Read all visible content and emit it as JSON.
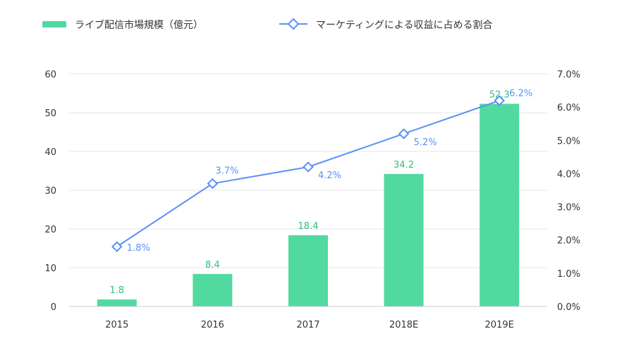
{
  "chart_data": {
    "type": "bar",
    "categories": [
      "2015",
      "2016",
      "2017",
      "2018E",
      "2019E"
    ],
    "series": [
      {
        "name": "ライブ配信市場規模（億元）",
        "type": "bar",
        "axis": "left",
        "values": [
          1.8,
          8.4,
          18.4,
          34.2,
          52.3
        ],
        "labels": [
          "1.8",
          "8.4",
          "18.4",
          "34.2",
          "52.3"
        ]
      },
      {
        "name": "マーケティングによる収益に占める割合",
        "type": "line",
        "axis": "right",
        "values": [
          1.8,
          3.7,
          4.2,
          5.2,
          6.2
        ],
        "labels": [
          "1.8%",
          "3.7%",
          "4.2%",
          "5.2%",
          "6.2%"
        ]
      }
    ],
    "y_left": {
      "min": 0,
      "max": 60,
      "ticks": [
        "0",
        "10",
        "20",
        "30",
        "40",
        "50",
        "60"
      ]
    },
    "y_right": {
      "min": 0,
      "max": 7,
      "ticks": [
        "0.0%",
        "1.0%",
        "2.0%",
        "3.0%",
        "4.0%",
        "5.0%",
        "6.0%",
        "7.0%"
      ]
    },
    "grid": true,
    "legend": "top"
  },
  "colors": {
    "bar": "#52d9a0",
    "bar_label": "#2fbf78",
    "line": "#5b8ff9",
    "grid": "#e6e6e6",
    "axis": "#cccccc",
    "text": "#333333"
  }
}
